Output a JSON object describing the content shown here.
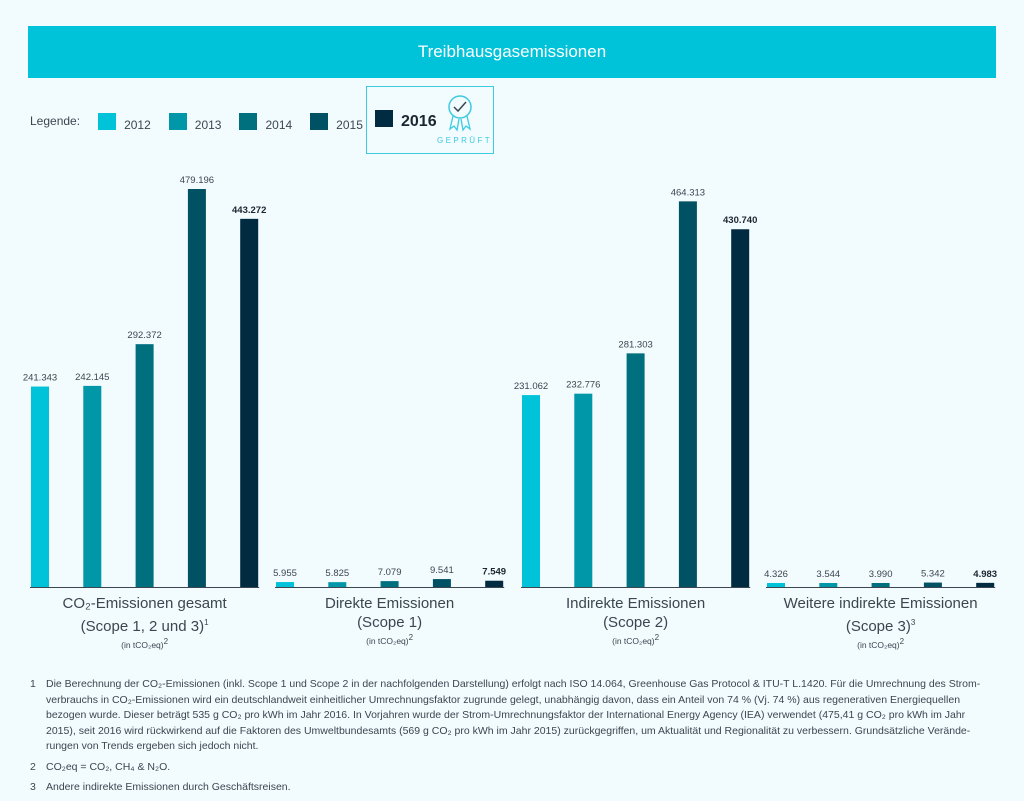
{
  "title": "Treibhausgasemissionen",
  "legend": {
    "label": "Legende:",
    "items": [
      {
        "year": "2012",
        "color": "#00c3da"
      },
      {
        "year": "2013",
        "color": "#0097a9"
      },
      {
        "year": "2014",
        "color": "#00707f"
      },
      {
        "year": "2015",
        "color": "#005163"
      },
      {
        "year": "2016",
        "color": "#002b40"
      }
    ],
    "badge_text": "GEPRÜFT"
  },
  "chart_data": {
    "type": "bar",
    "title": "Treibhausgasemissionen",
    "series_names": [
      "2012",
      "2013",
      "2014",
      "2015",
      "2016"
    ],
    "highlight_series": "2016",
    "categories": [
      {
        "line1": "CO₂-Emissionen gesamt",
        "line2": "(Scope 1, 2 und 3)",
        "line2_sup": "1",
        "unit": "(in tCO₂eq)",
        "unit_sup": "2"
      },
      {
        "line1": "Direkte Emissionen",
        "line2": "(Scope 1)",
        "line2_sup": "",
        "unit": "(in tCO₂eq)",
        "unit_sup": "2"
      },
      {
        "line1": "Indirekte Emissionen",
        "line2": "(Scope 2)",
        "line2_sup": "",
        "unit": "(in tCO₂eq)",
        "unit_sup": "2"
      },
      {
        "line1": "Weitere indirekte Emissionen",
        "line2": "(Scope 3)",
        "line2_sup": "3",
        "unit": "(in tCO₂eq)",
        "unit_sup": "2"
      }
    ],
    "values": [
      [
        241343,
        242145,
        292372,
        479196,
        443272
      ],
      [
        5955,
        5825,
        7079,
        9541,
        7549
      ],
      [
        231062,
        232776,
        281303,
        464313,
        430740
      ],
      [
        4326,
        3544,
        3990,
        5342,
        4983
      ]
    ],
    "labels": [
      [
        "241.343",
        "242.145",
        "292.372",
        "479.196",
        "443.272"
      ],
      [
        "5.955",
        "5.825",
        "7.079",
        "9.541",
        "7.549"
      ],
      [
        "231.062",
        "232.776",
        "281.303",
        "464.313",
        "430.740"
      ],
      [
        "4.326",
        "3.544",
        "3.990",
        "5.342",
        "4.983"
      ]
    ],
    "unit": "tCO₂eq",
    "axes_shown": false,
    "grid": false,
    "legend_position": "top-left"
  },
  "footnotes": [
    {
      "num": "1",
      "text": "Die Berechnung der CO₂-Emissionen (inkl. Scope 1 und Scope 2 in der nachfolgenden Darstellung) erfolgt nach ISO 14.064, Greenhouse Gas Protocol & ITU-T L.1420. Für die Umrechnung des Strom­verbrauchs in CO₂-Emissionen wird ein deutschlandweit einheitlicher Umrechnungsfaktor zugrunde gelegt, unabhängig davon, dass ein Anteil von 74 % (Vj. 74 %) aus regenerativen Energiequellen bezogen wurde. Dieser beträgt 535 g CO₂ pro kWh im Jahr 2016. In Vorjahren wurde der Strom-Umrechnungsfaktor der International Energy Agency (IEA) verwendet (475,41 g CO₂ pro kWh im Jahr 2015), seit 2016 wird rückwirkend auf die Faktoren des Umweltbundesamts (569 g CO₂ pro kWh im Jahr 2015) zurückgegriffen, um Aktualität und Regionalität zu verbessern. Grundsätzliche Verände­rungen von Trends ergeben sich jedoch nicht."
    },
    {
      "num": "2",
      "text": "CO₂eq = CO₂, CH₄ & N₂O."
    },
    {
      "num": "3",
      "text": "Andere indirekte Emissionen durch Geschäftsreisen."
    }
  ]
}
